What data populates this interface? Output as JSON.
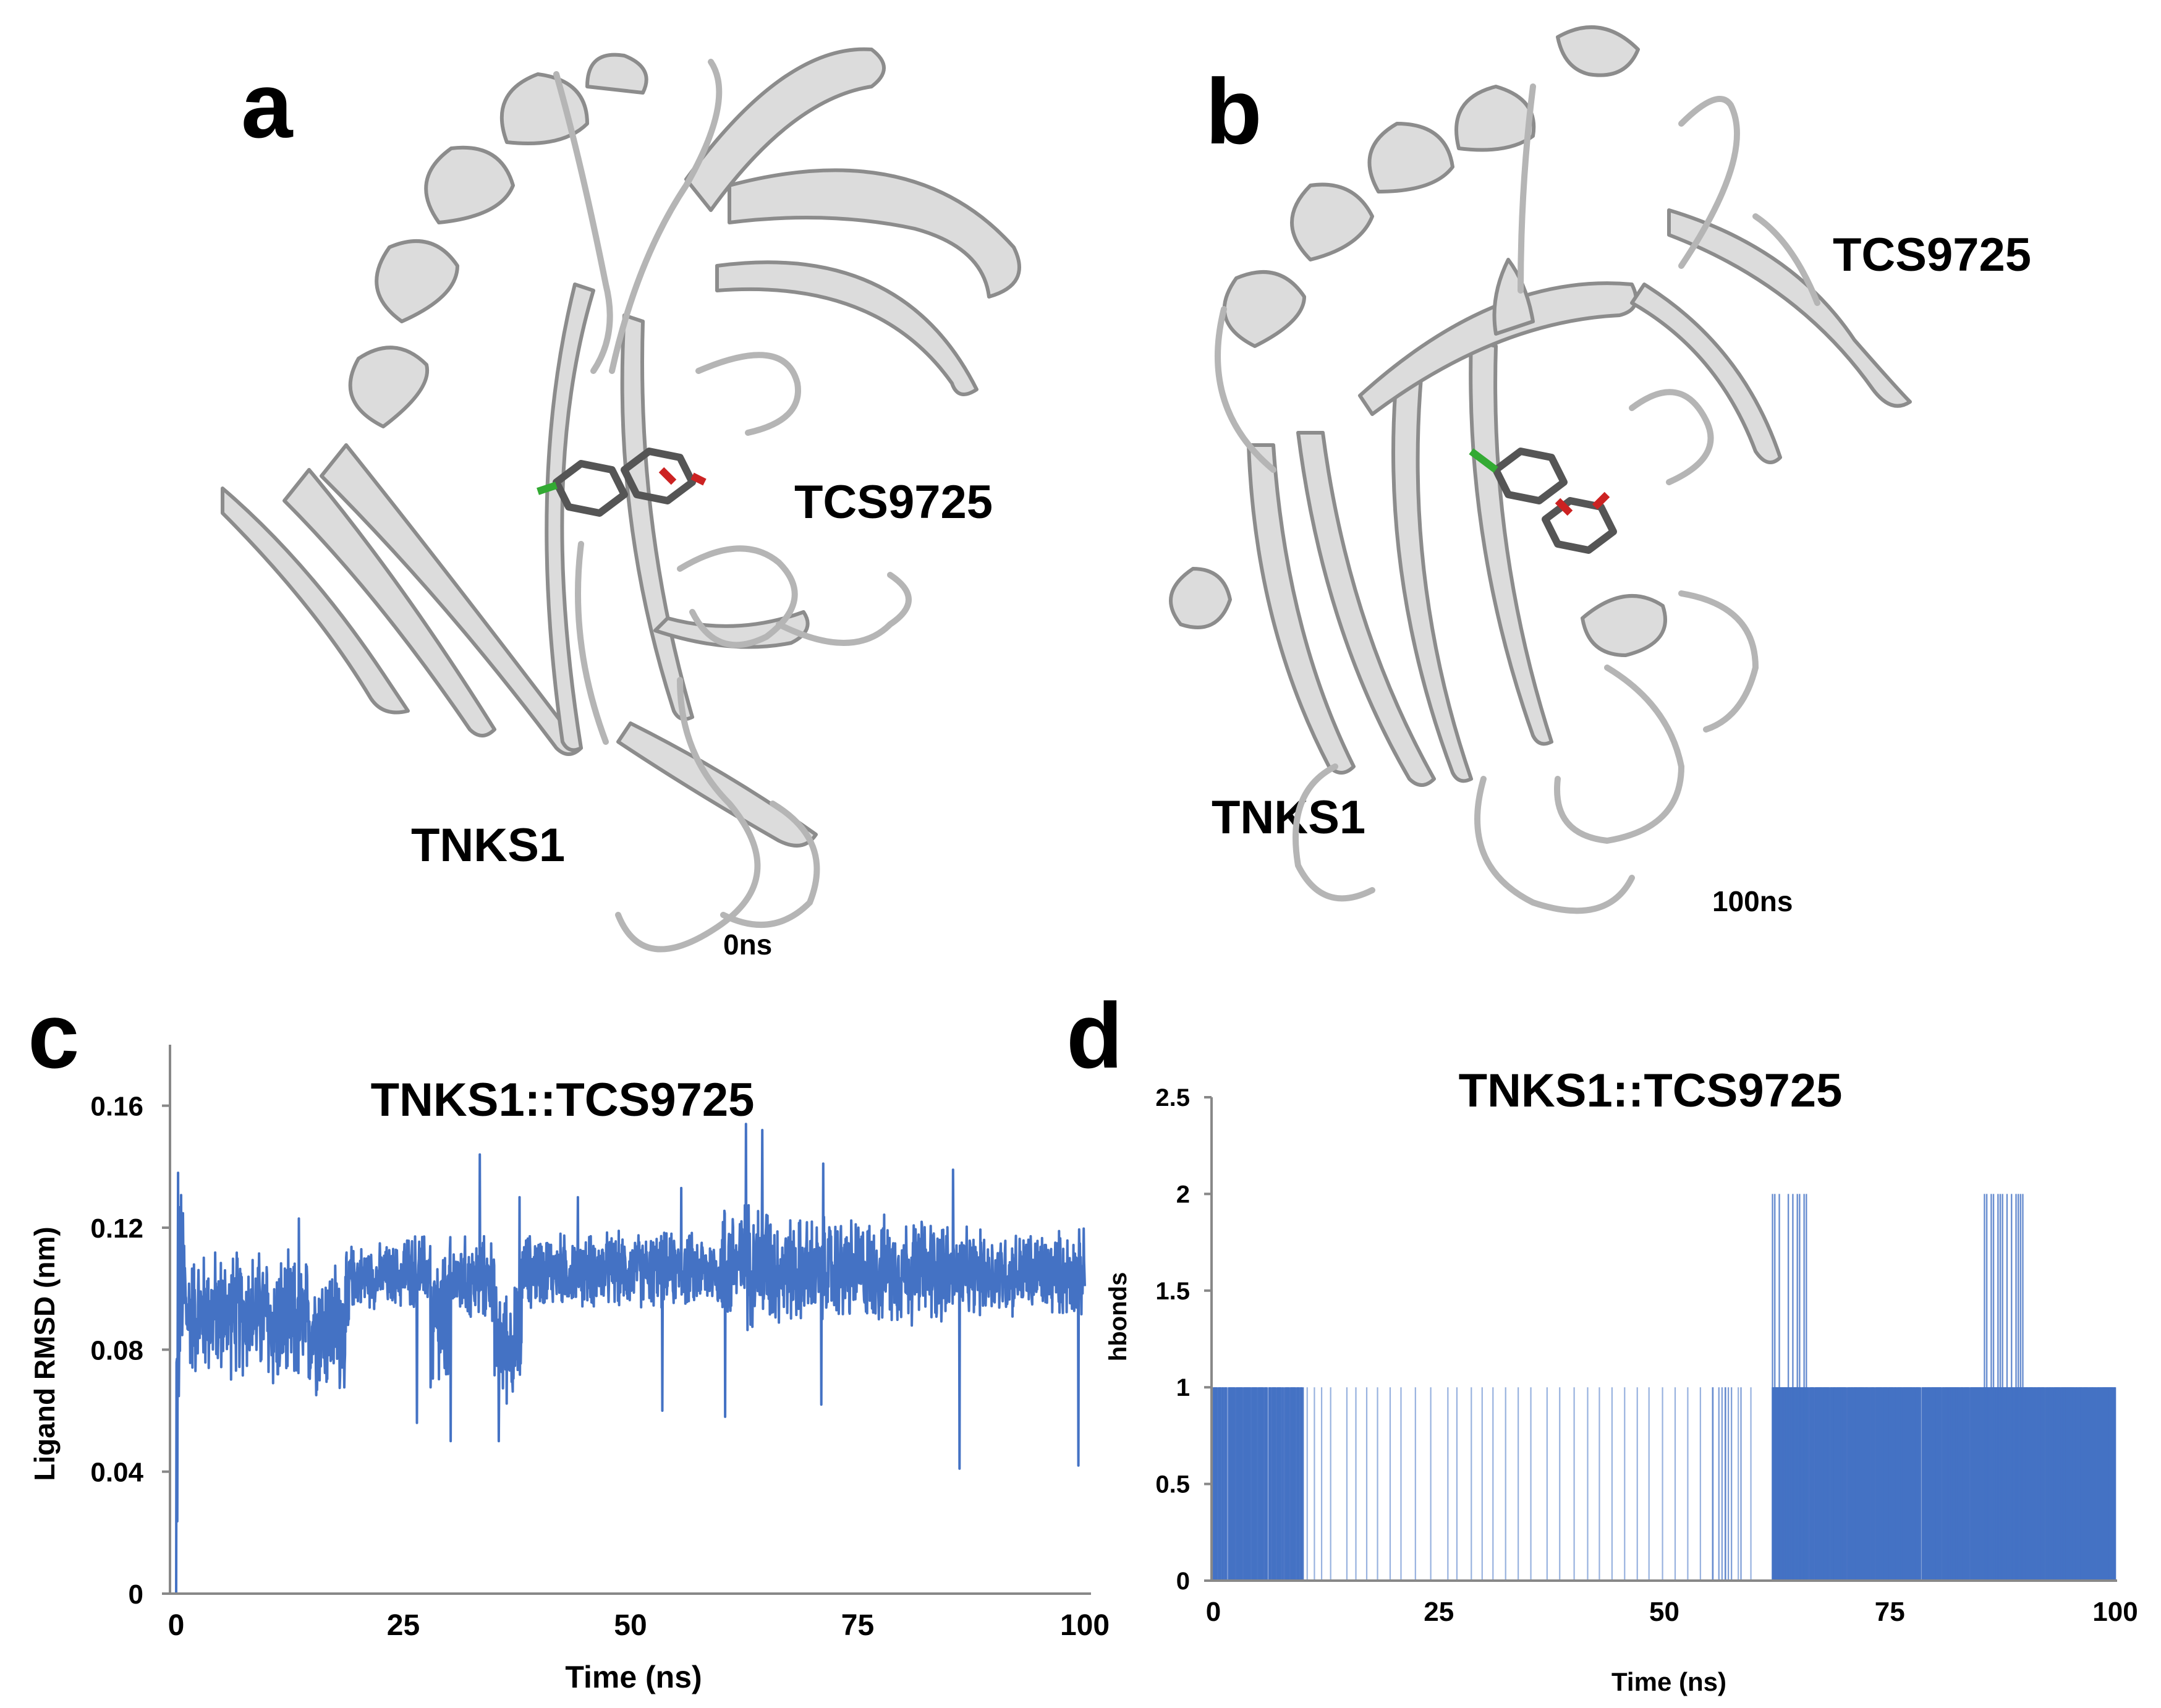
{
  "panels": {
    "a": {
      "letter": "a",
      "ligand_label": "TCS9725",
      "protein_label": "TNKS1",
      "time_label": "0ns"
    },
    "b": {
      "letter": "b",
      "ligand_label": "TCS9725",
      "protein_label": "TNKS1",
      "time_label": "100ns"
    },
    "c": {
      "letter": "c"
    },
    "d": {
      "letter": "d"
    }
  },
  "colors": {
    "series": "#4472c4",
    "ribbon": "#d9d9d9",
    "ribbon_edge": "#8c8c8c",
    "ligand": "#555555",
    "oxygen": "#cc2222",
    "chlorine": "#33aa33"
  },
  "chart_data": [
    {
      "panel": "c",
      "type": "line",
      "title": "TNKS1::TCS9725",
      "xlabel": "Time (ns)",
      "ylabel": "Ligand RMSD (nm)",
      "xlim": [
        0,
        100
      ],
      "ylim": [
        0,
        0.18
      ],
      "xticks": [
        "0",
        "25",
        "50",
        "75",
        "100"
      ],
      "yticks": [
        "0",
        "0.04",
        "0.08",
        "0.12",
        "0.16"
      ],
      "series": [
        {
          "segments": [
            {
              "x0": 0,
              "x1": 0.3,
              "mean": 0.06,
              "amp": 0.06
            },
            {
              "x0": 0.3,
              "x1": 1,
              "mean": 0.1,
              "amp": 0.04
            },
            {
              "x0": 1,
              "x1": 10,
              "mean": 0.092,
              "amp": 0.024
            },
            {
              "x0": 10,
              "x1": 19,
              "mean": 0.088,
              "amp": 0.026
            },
            {
              "x0": 19,
              "x1": 25,
              "mean": 0.104,
              "amp": 0.012
            },
            {
              "x0": 25,
              "x1": 28,
              "mean": 0.106,
              "amp": 0.014
            },
            {
              "x0": 28,
              "x1": 30,
              "mean": 0.088,
              "amp": 0.03
            },
            {
              "x0": 30,
              "x1": 35,
              "mean": 0.103,
              "amp": 0.016
            },
            {
              "x0": 35,
              "x1": 38,
              "mean": 0.082,
              "amp": 0.022
            },
            {
              "x0": 38,
              "x1": 60,
              "mean": 0.106,
              "amp": 0.014
            },
            {
              "x0": 60,
              "x1": 66,
              "mean": 0.108,
              "amp": 0.024
            },
            {
              "x0": 66,
              "x1": 85,
              "mean": 0.106,
              "amp": 0.02
            },
            {
              "x0": 85,
              "x1": 100,
              "mean": 0.105,
              "amp": 0.016
            }
          ],
          "spikes": [
            {
              "x": 0.2,
              "y": 0.138
            },
            {
              "x": 13.5,
              "y": 0.123
            },
            {
              "x": 26.5,
              "y": 0.056
            },
            {
              "x": 30.2,
              "y": 0.05
            },
            {
              "x": 33.4,
              "y": 0.144
            },
            {
              "x": 35.5,
              "y": 0.05
            },
            {
              "x": 37.8,
              "y": 0.13
            },
            {
              "x": 44.2,
              "y": 0.13
            },
            {
              "x": 55.6,
              "y": 0.133
            },
            {
              "x": 62.7,
              "y": 0.154
            },
            {
              "x": 64.5,
              "y": 0.152
            },
            {
              "x": 71.2,
              "y": 0.141
            },
            {
              "x": 71.0,
              "y": 0.062
            },
            {
              "x": 86.2,
              "y": 0.041
            },
            {
              "x": 85.5,
              "y": 0.139
            },
            {
              "x": 99.3,
              "y": 0.042
            },
            {
              "x": 53.5,
              "y": 0.06
            },
            {
              "x": 60.4,
              "y": 0.058
            }
          ]
        }
      ]
    },
    {
      "panel": "d",
      "type": "bar",
      "title": "TNKS1::TCS9725",
      "xlabel": "Time (ns)",
      "ylabel": "hbonds",
      "xlim": [
        0,
        100
      ],
      "ylim": [
        0,
        2.5
      ],
      "xticks": [
        "0",
        "25",
        "50",
        "75",
        "100"
      ],
      "yticks": [
        "0",
        "0.5",
        "1",
        "1.5",
        "2",
        "2.5"
      ],
      "series": [
        {
          "value1_dense": [
            [
              0,
              10
            ]
          ],
          "value1_sparse": [
            10.4,
            11.2,
            12.0,
            13.0,
            14.8,
            15.8,
            17.0,
            18.2,
            19.6,
            20.8,
            22.4,
            24.1,
            26.0,
            27.0,
            28.6,
            29.8,
            31.0,
            32.4,
            33.8,
            35.2,
            37.0,
            38.4,
            40.0,
            41.5,
            42.8,
            44.2,
            45.6,
            47.0,
            48.3,
            49.8,
            51.2,
            52.6,
            54.0,
            55.4,
            56.8,
            58.2,
            59.6
          ],
          "value1_cluster": [
            [
              55,
              59.8
            ]
          ],
          "value1_dense_late": [
            [
              62,
              100
            ]
          ],
          "value2_ranges": [
            [
              62,
              66
            ],
            [
              85.5,
              90
            ]
          ]
        }
      ]
    }
  ]
}
